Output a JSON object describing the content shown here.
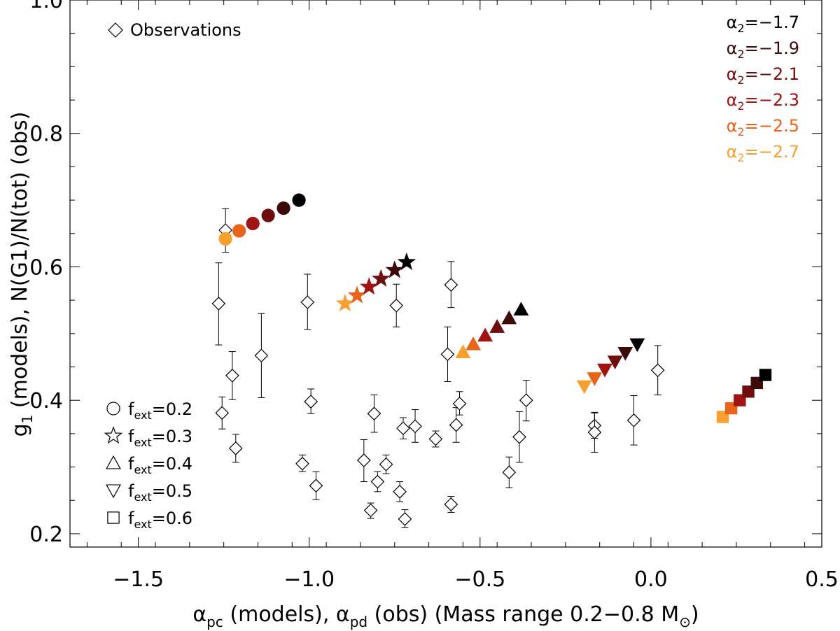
{
  "chart_data": {
    "type": "scatter",
    "xlabel": "α_pc (models), α_pd (obs) (Mass range 0.2–0.8 M☉)",
    "xlabel_parts": {
      "a1": "α",
      "s1": "pc",
      "mid": " (models), ",
      "a2": "α",
      "s2": "pd",
      "tail": " (obs) (Mass range 0.2−0.8 M",
      "sun": "⊙",
      "close": ")"
    },
    "ylabel": "g1 (models), N(G1)/N(tot) (obs)",
    "ylabel_parts": {
      "g": "g",
      "s": "1",
      "rest": " (models), N(G1)/N(tot) (obs)"
    },
    "xlim": [
      -1.7,
      0.5
    ],
    "ylim": [
      0.18,
      1.0
    ],
    "xticks": [
      -1.5,
      -1.0,
      -0.5,
      0.0,
      0.5
    ],
    "xtick_labels": [
      "−1.5",
      "−1.0",
      "−0.5",
      "0.0",
      "0.5"
    ],
    "yticks": [
      0.2,
      0.4,
      0.6,
      0.8,
      1.0
    ],
    "ytick_labels": [
      "0.2",
      "0.4",
      "0.6",
      "0.8",
      "1.0"
    ],
    "obs_legend": "Observations",
    "alpha_legend": [
      {
        "prefix": "α",
        "sub": "2",
        "value": "=−1.7",
        "color": "#000000"
      },
      {
        "prefix": "α",
        "sub": "2",
        "value": "=−1.9",
        "color": "#3c0b08"
      },
      {
        "prefix": "α",
        "sub": "2",
        "value": "=−2.1",
        "color": "#6e0e0e"
      },
      {
        "prefix": "α",
        "sub": "2",
        "value": "=−2.3",
        "color": "#a01414"
      },
      {
        "prefix": "α",
        "sub": "2",
        "value": "=−2.5",
        "color": "#e8641a"
      },
      {
        "prefix": "α",
        "sub": "2",
        "value": "=−2.7",
        "color": "#f7a030"
      }
    ],
    "symbol_legend": [
      {
        "shape": "circle",
        "prefix": "f",
        "sub": "ext",
        "value": "=0.2"
      },
      {
        "shape": "star",
        "prefix": "f",
        "sub": "ext",
        "value": "=0.3"
      },
      {
        "shape": "triangle-up",
        "prefix": "f",
        "sub": "ext",
        "value": "=0.4"
      },
      {
        "shape": "triangle-down",
        "prefix": "f",
        "sub": "ext",
        "value": "=0.5"
      },
      {
        "shape": "square",
        "prefix": "f",
        "sub": "ext",
        "value": "=0.6"
      }
    ],
    "model_series": [
      {
        "name": "f_ext=0.2",
        "shape": "circle",
        "x": [
          -1.03,
          -1.075,
          -1.12,
          -1.165,
          -1.205,
          -1.245
        ],
        "y": [
          0.7,
          0.688,
          0.677,
          0.665,
          0.654,
          0.642
        ]
      },
      {
        "name": "f_ext=0.3",
        "shape": "star",
        "x": [
          -0.715,
          -0.75,
          -0.79,
          -0.825,
          -0.86,
          -0.895
        ],
        "y": [
          0.607,
          0.595,
          0.582,
          0.57,
          0.557,
          0.545
        ]
      },
      {
        "name": "f_ext=0.4",
        "shape": "triangle-up",
        "x": [
          -0.38,
          -0.415,
          -0.45,
          -0.485,
          -0.52,
          -0.55
        ],
        "y": [
          0.536,
          0.523,
          0.51,
          0.497,
          0.484,
          0.472
        ]
      },
      {
        "name": "f_ext=0.5",
        "shape": "triangle-down",
        "x": [
          -0.04,
          -0.075,
          -0.105,
          -0.135,
          -0.165,
          -0.195
        ],
        "y": [
          0.484,
          0.471,
          0.458,
          0.446,
          0.433,
          0.421
        ]
      },
      {
        "name": "f_ext=0.6",
        "shape": "square",
        "x": [
          0.335,
          0.31,
          0.285,
          0.26,
          0.235,
          0.21
        ],
        "y": [
          0.438,
          0.426,
          0.413,
          0.4,
          0.388,
          0.375
        ]
      }
    ],
    "observations": [
      {
        "x": -1.245,
        "y": 0.655,
        "lo": 0.622,
        "hi": 0.687
      },
      {
        "x": -1.265,
        "y": 0.545,
        "lo": 0.483,
        "hi": 0.606
      },
      {
        "x": -1.255,
        "y": 0.381,
        "lo": 0.357,
        "hi": 0.405
      },
      {
        "x": -1.225,
        "y": 0.437,
        "lo": 0.401,
        "hi": 0.473
      },
      {
        "x": -1.215,
        "y": 0.328,
        "lo": 0.307,
        "hi": 0.349
      },
      {
        "x": -1.14,
        "y": 0.467,
        "lo": 0.404,
        "hi": 0.53
      },
      {
        "x": -1.005,
        "y": 0.547,
        "lo": 0.506,
        "hi": 0.589
      },
      {
        "x": -0.995,
        "y": 0.398,
        "lo": 0.38,
        "hi": 0.417
      },
      {
        "x": -1.02,
        "y": 0.305,
        "lo": 0.293,
        "hi": 0.318
      },
      {
        "x": -0.98,
        "y": 0.272,
        "lo": 0.251,
        "hi": 0.293
      },
      {
        "x": -0.84,
        "y": 0.31,
        "lo": 0.278,
        "hi": 0.341
      },
      {
        "x": -0.81,
        "y": 0.38,
        "lo": 0.352,
        "hi": 0.408
      },
      {
        "x": -0.8,
        "y": 0.278,
        "lo": 0.263,
        "hi": 0.293
      },
      {
        "x": -0.82,
        "y": 0.235,
        "lo": 0.223,
        "hi": 0.246
      },
      {
        "x": -0.775,
        "y": 0.304,
        "lo": 0.29,
        "hi": 0.318
      },
      {
        "x": -0.745,
        "y": 0.542,
        "lo": 0.51,
        "hi": 0.574
      },
      {
        "x": -0.725,
        "y": 0.358,
        "lo": 0.342,
        "hi": 0.374
      },
      {
        "x": -0.735,
        "y": 0.263,
        "lo": 0.248,
        "hi": 0.278
      },
      {
        "x": -0.72,
        "y": 0.222,
        "lo": 0.209,
        "hi": 0.236
      },
      {
        "x": -0.69,
        "y": 0.361,
        "lo": 0.337,
        "hi": 0.386
      },
      {
        "x": -0.63,
        "y": 0.342,
        "lo": 0.33,
        "hi": 0.354
      },
      {
        "x": -0.595,
        "y": 0.469,
        "lo": 0.428,
        "hi": 0.51
      },
      {
        "x": -0.585,
        "y": 0.573,
        "lo": 0.539,
        "hi": 0.608
      },
      {
        "x": -0.585,
        "y": 0.244,
        "lo": 0.232,
        "hi": 0.256
      },
      {
        "x": -0.57,
        "y": 0.363,
        "lo": 0.337,
        "hi": 0.389
      },
      {
        "x": -0.56,
        "y": 0.395,
        "lo": 0.378,
        "hi": 0.413
      },
      {
        "x": -0.415,
        "y": 0.292,
        "lo": 0.269,
        "hi": 0.315
      },
      {
        "x": -0.385,
        "y": 0.345,
        "lo": 0.307,
        "hi": 0.383
      },
      {
        "x": -0.365,
        "y": 0.4,
        "lo": 0.369,
        "hi": 0.43
      },
      {
        "x": -0.165,
        "y": 0.362,
        "lo": 0.343,
        "hi": 0.381
      },
      {
        "x": -0.165,
        "y": 0.352,
        "lo": 0.322,
        "hi": 0.382
      },
      {
        "x": -0.05,
        "y": 0.37,
        "lo": 0.333,
        "hi": 0.407
      },
      {
        "x": 0.02,
        "y": 0.445,
        "lo": 0.408,
        "hi": 0.482
      }
    ]
  }
}
